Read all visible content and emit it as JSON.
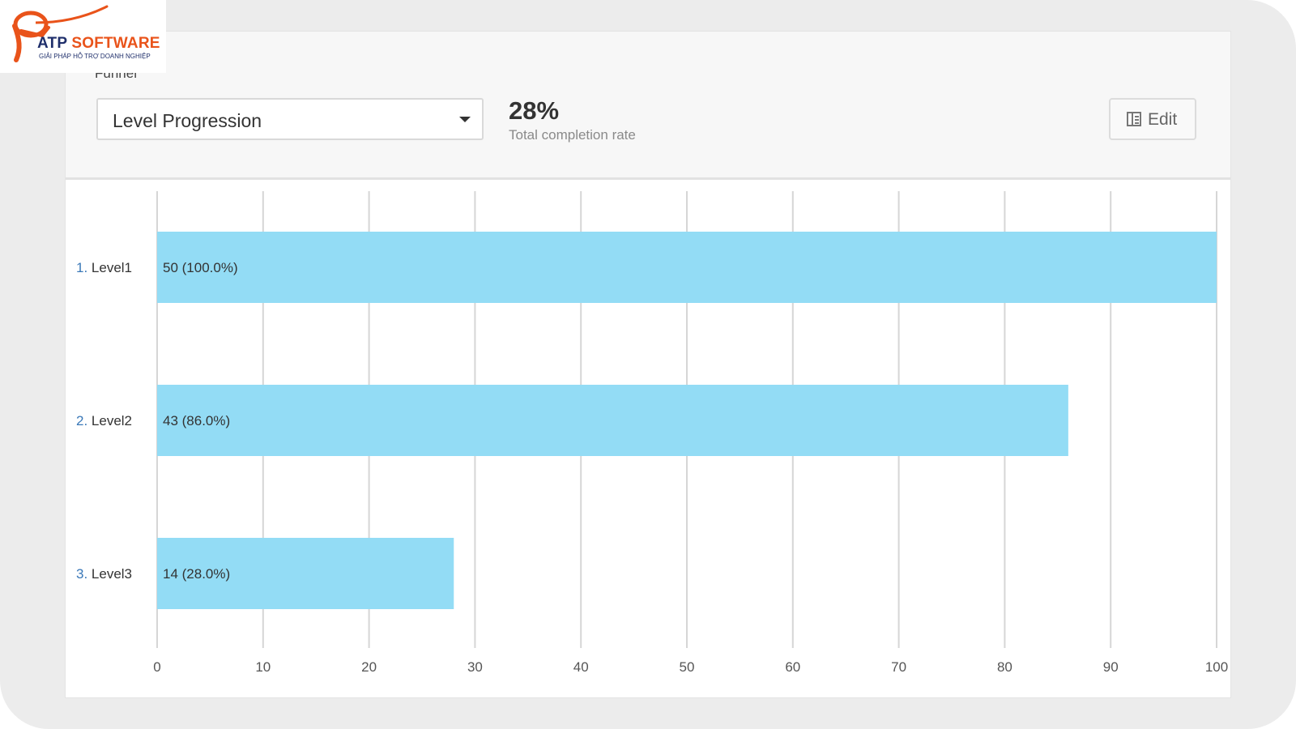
{
  "logo": {
    "brand_primary": "ATP",
    "brand_secondary": "SOFTWARE",
    "tagline": "GIẢI PHÁP HỖ TRỢ DOANH NGHIỆP",
    "colors": {
      "orange": "#e9531a",
      "navy": "#1f2f6b"
    }
  },
  "header": {
    "funnel_label": "Funnel",
    "funnel_select": {
      "selected": "Level Progression"
    },
    "completion": {
      "value": "28%",
      "caption": "Total completion rate"
    },
    "edit_button": {
      "label": "Edit",
      "icon": "edit-icon"
    }
  },
  "chart_data": {
    "type": "bar",
    "orientation": "horizontal",
    "categories": [
      "Level1",
      "Level2",
      "Level3"
    ],
    "category_numbers": [
      "1.",
      "2.",
      "3."
    ],
    "values": [
      50,
      43,
      14
    ],
    "value_labels": [
      "50 (100.0%)",
      "43 (86.0%)",
      "14 (28.0%)"
    ],
    "percent": [
      100,
      86,
      28
    ],
    "xlim": [
      0,
      100
    ],
    "xticks": [
      0,
      10,
      20,
      30,
      40,
      50,
      60,
      70,
      80,
      90,
      100
    ],
    "grid": true,
    "bar_color": "#93dcf5"
  }
}
